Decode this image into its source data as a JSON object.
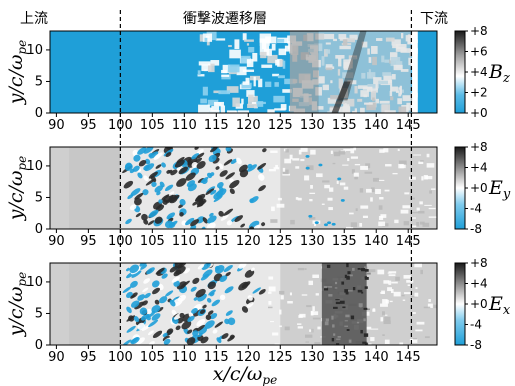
{
  "annotations": {
    "upstream": "上流",
    "transition": "衝撃波遷移層",
    "downstream": "下流"
  },
  "colors": {
    "blue": "#1f9fd8",
    "light_blue": "#8fd2ef",
    "white": "#ffffff",
    "light_gray": "#d8d8d8",
    "mid_gray": "#a5a5a5",
    "dark": "#2a2a2a"
  },
  "chart_data": [
    {
      "type": "heatmap",
      "title": "",
      "field_label": "B_z",
      "xlabel": "",
      "ylabel": "y/c/ω_pe",
      "xlim": [
        89,
        149.5
      ],
      "ylim": [
        0,
        13
      ],
      "xticks": [
        90,
        95,
        100,
        105,
        110,
        115,
        120,
        125,
        130,
        135,
        140,
        145
      ],
      "yticks": [
        0,
        5,
        10
      ],
      "vlines": [
        100,
        145.5
      ],
      "colorbar": {
        "ticks": [
          "+8",
          "+6",
          "+4",
          "+2",
          "+0"
        ],
        "range": [
          0,
          8
        ]
      }
    },
    {
      "type": "heatmap",
      "title": "",
      "field_label": "E_y",
      "xlabel": "",
      "ylabel": "y/c/ω_pe",
      "xlim": [
        89,
        149.5
      ],
      "ylim": [
        0,
        13
      ],
      "xticks": [
        90,
        95,
        100,
        105,
        110,
        115,
        120,
        125,
        130,
        135,
        140,
        145
      ],
      "yticks": [
        0,
        5,
        10
      ],
      "vlines": [
        100,
        145.5
      ],
      "colorbar": {
        "ticks": [
          "+8",
          "+4",
          "+0",
          "-4",
          "-8"
        ],
        "range": [
          -8,
          8
        ]
      }
    },
    {
      "type": "heatmap",
      "title": "",
      "field_label": "E_x",
      "xlabel": "x/c/ω_pe",
      "ylabel": "y/c/ω_pe",
      "xlim": [
        89,
        149.5
      ],
      "ylim": [
        0,
        13
      ],
      "xticks": [
        90,
        95,
        100,
        105,
        110,
        115,
        120,
        125,
        130,
        135,
        140,
        145
      ],
      "yticks": [
        0,
        5,
        10
      ],
      "vlines": [
        100,
        145.5
      ],
      "colorbar": {
        "ticks": [
          "+8",
          "+4",
          "+0",
          "-4",
          "-8"
        ],
        "range": [
          -8,
          8
        ]
      }
    }
  ]
}
